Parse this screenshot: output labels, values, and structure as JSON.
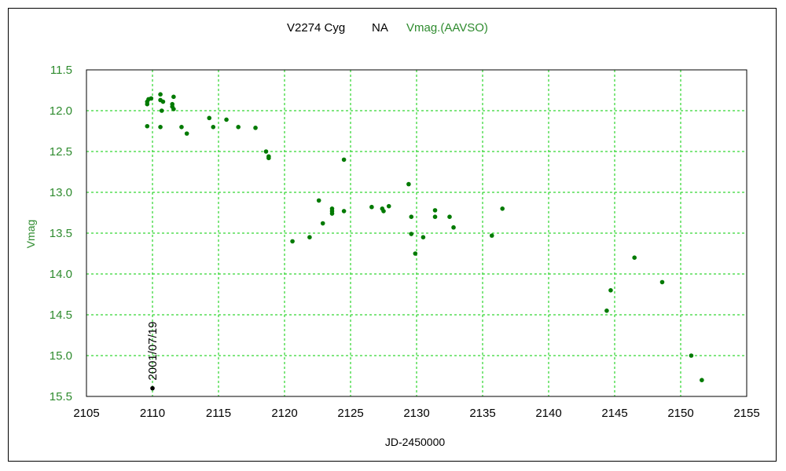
{
  "chart_data": {
    "type": "scatter",
    "title_star": "V2274 Cyg",
    "title_band": "NA",
    "title_series": "Vmag.(AAVSO)",
    "xlabel": "JD-2450000",
    "ylabel": "Vmag",
    "xlim": [
      2105,
      2155
    ],
    "ylim": [
      15.5,
      11.5
    ],
    "y_inverted": true,
    "grid": true,
    "xticks": [
      2105,
      2110,
      2115,
      2120,
      2125,
      2130,
      2135,
      2140,
      2145,
      2150,
      2155
    ],
    "yticks": [
      "11.5",
      "12.0",
      "12.5",
      "13.0",
      "13.5",
      "14.0",
      "14.5",
      "15.0",
      "15.5"
    ],
    "series": [
      {
        "name": "Vmag.(AAVSO)",
        "color": "#007a00",
        "points": [
          [
            2109.6,
            11.92
          ],
          [
            2109.6,
            11.89
          ],
          [
            2109.7,
            11.86
          ],
          [
            2109.9,
            11.85
          ],
          [
            2109.6,
            12.19
          ],
          [
            2110.6,
            11.8
          ],
          [
            2110.6,
            11.87
          ],
          [
            2110.8,
            11.89
          ],
          [
            2110.7,
            12.0
          ],
          [
            2110.6,
            12.2
          ],
          [
            2111.6,
            11.83
          ],
          [
            2111.5,
            11.92
          ],
          [
            2111.5,
            11.95
          ],
          [
            2111.6,
            11.98
          ],
          [
            2112.2,
            12.2
          ],
          [
            2112.6,
            12.28
          ],
          [
            2114.3,
            12.09
          ],
          [
            2114.6,
            12.2
          ],
          [
            2115.6,
            12.11
          ],
          [
            2116.5,
            12.2
          ],
          [
            2117.8,
            12.21
          ],
          [
            2118.6,
            12.5
          ],
          [
            2118.8,
            12.56
          ],
          [
            2118.8,
            12.58
          ],
          [
            2120.6,
            13.6
          ],
          [
            2121.9,
            13.55
          ],
          [
            2122.6,
            13.1
          ],
          [
            2122.9,
            13.38
          ],
          [
            2123.6,
            13.2
          ],
          [
            2123.6,
            13.23
          ],
          [
            2123.6,
            13.26
          ],
          [
            2124.5,
            12.6
          ],
          [
            2124.5,
            13.23
          ],
          [
            2126.6,
            13.18
          ],
          [
            2127.4,
            13.2
          ],
          [
            2127.5,
            13.23
          ],
          [
            2127.9,
            13.17
          ],
          [
            2129.4,
            12.9
          ],
          [
            2129.6,
            13.3
          ],
          [
            2129.6,
            13.51
          ],
          [
            2129.9,
            13.75
          ],
          [
            2130.5,
            13.55
          ],
          [
            2131.4,
            13.22
          ],
          [
            2131.4,
            13.3
          ],
          [
            2132.5,
            13.3
          ],
          [
            2132.8,
            13.43
          ],
          [
            2135.7,
            13.53
          ],
          [
            2136.5,
            13.2
          ],
          [
            2144.4,
            14.45
          ],
          [
            2144.7,
            14.2
          ],
          [
            2146.5,
            13.8
          ],
          [
            2148.6,
            14.1
          ],
          [
            2150.8,
            15.0
          ],
          [
            2151.6,
            15.3
          ]
        ]
      },
      {
        "name": "2001/07/19",
        "color": "#000000",
        "points": [
          [
            2110.0,
            15.4
          ]
        ]
      }
    ],
    "annotations": [
      {
        "text": "2001/07/19",
        "x": 2110.0,
        "y": 15.4
      }
    ]
  },
  "colors": {
    "title_series": "#2e8b2e",
    "ylabel": "#2e8b2e",
    "grid": "#00cc00",
    "axis": "#000000"
  }
}
